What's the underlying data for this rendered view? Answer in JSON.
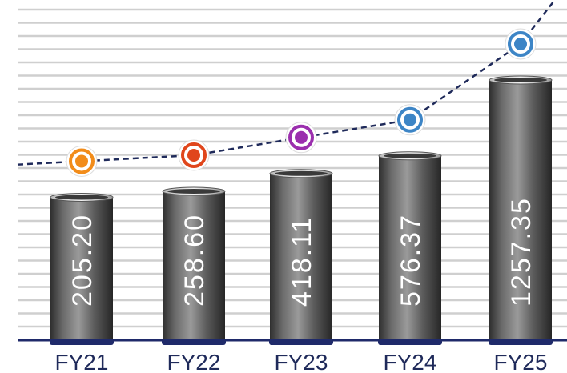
{
  "chart_data": {
    "type": "bar",
    "categories": [
      "FY21",
      "FY22",
      "FY23",
      "FY24",
      "FY25"
    ],
    "values": [
      205.2,
      258.6,
      418.11,
      576.37,
      1257.35
    ],
    "value_labels": [
      "205.20",
      "258.60",
      "418.11",
      "576.37",
      "1257.35"
    ],
    "marker_colors": [
      "#f28c1a",
      "#e0461c",
      "#9b2fae",
      "#3d85c6",
      "#3d85c6"
    ]
  }
}
